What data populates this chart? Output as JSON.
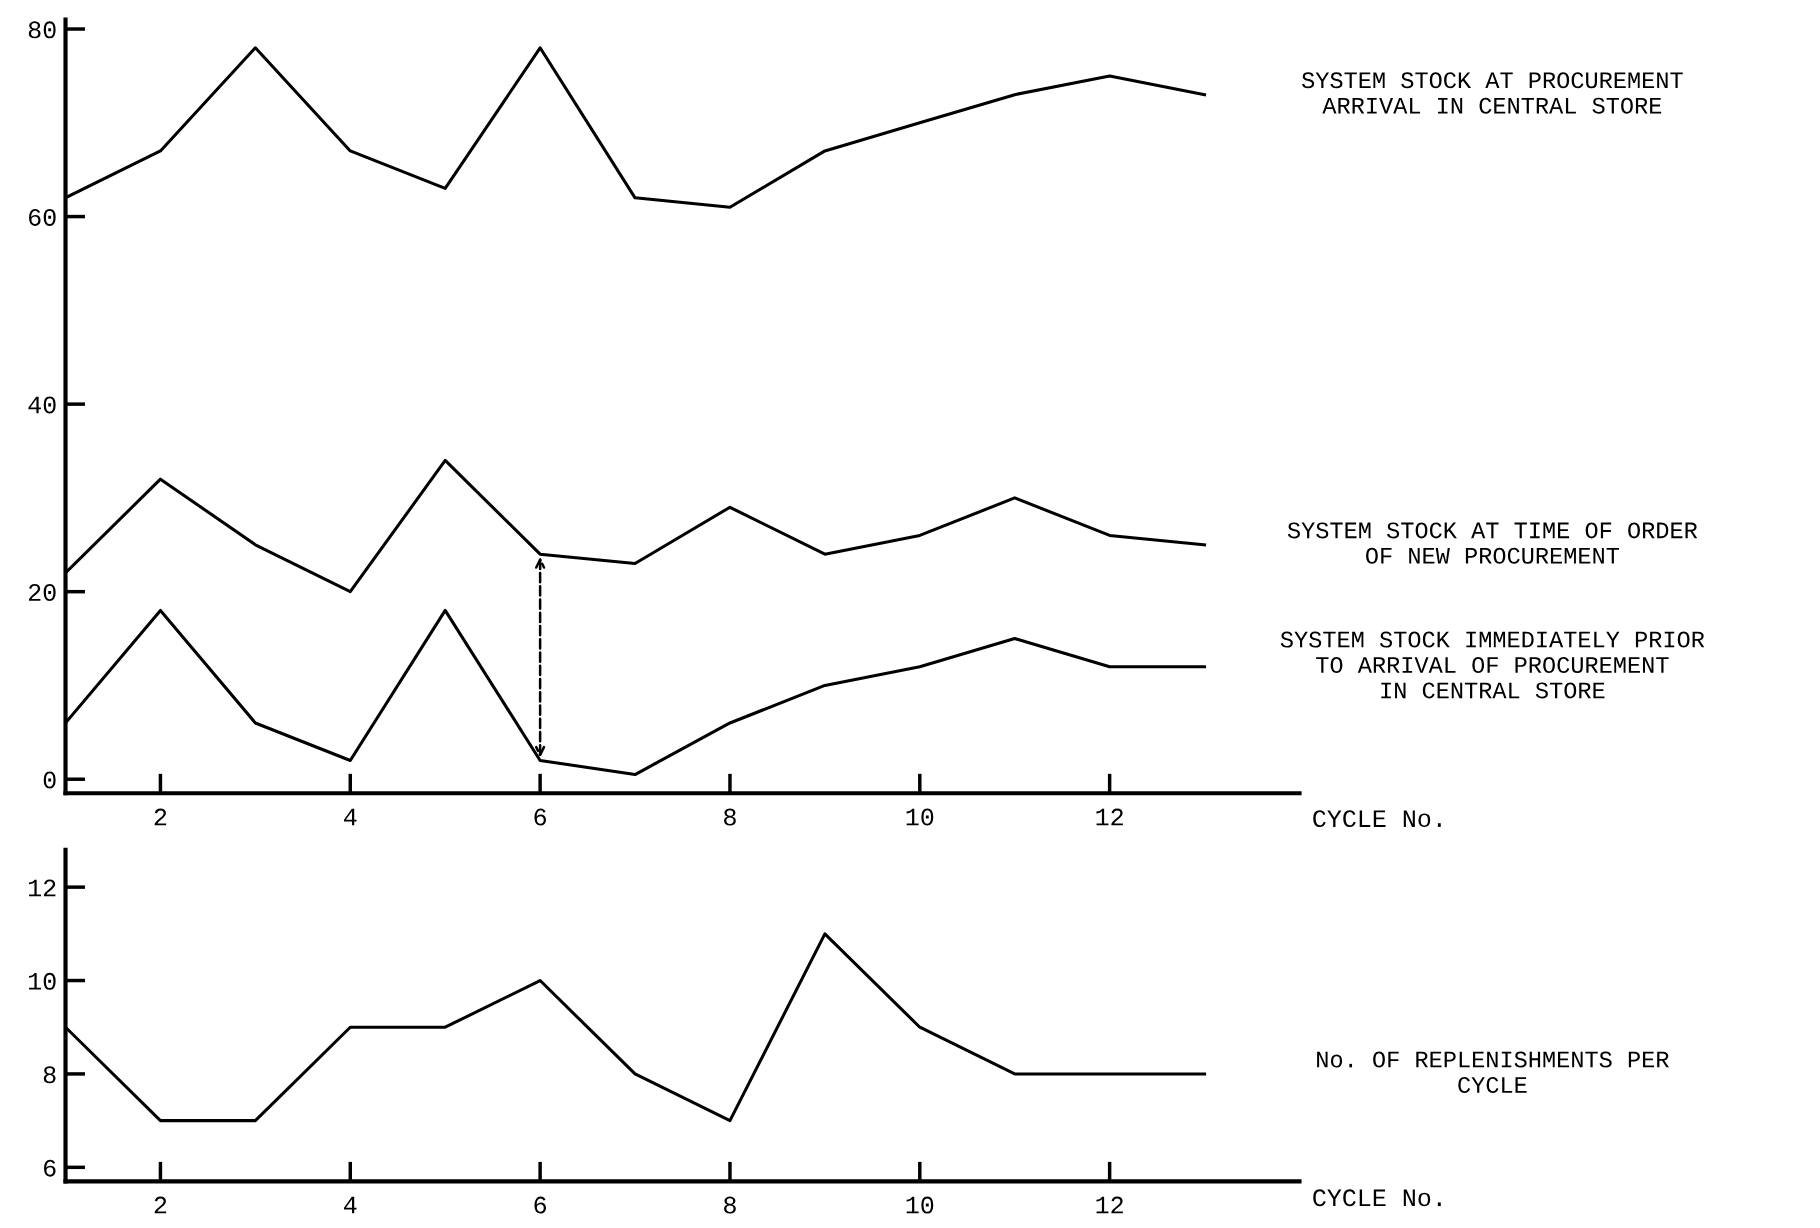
{
  "chart_data": [
    {
      "type": "line",
      "x": [
        1,
        2,
        3,
        4,
        5,
        6,
        7,
        8,
        9,
        10,
        11,
        12,
        13
      ],
      "xlabel": "CYCLE No.",
      "xlim": [
        1,
        14
      ],
      "xticks": [
        2,
        4,
        6,
        8,
        10,
        12
      ],
      "ylim": [
        -1.5,
        81
      ],
      "yticks": [
        0,
        20,
        40,
        60,
        80
      ],
      "grid": false,
      "legend": false,
      "marker": "none",
      "line_style": "solid",
      "series": [
        {
          "name": "SYSTEM STOCK AT PROCUREMENT\nARRIVAL IN CENTRAL STORE",
          "color": "#000000",
          "values": [
            62,
            67,
            78,
            67,
            63,
            78,
            62,
            61,
            67,
            70,
            73,
            75,
            73
          ]
        },
        {
          "name": "SYSTEM STOCK AT TIME OF ORDER\nOF NEW PROCUREMENT",
          "color": "#000000",
          "values": [
            22,
            32,
            25,
            20,
            34,
            24,
            23,
            29,
            24,
            26,
            30,
            26,
            25
          ]
        },
        {
          "name": "SYSTEM STOCK IMMEDIATELY PRIOR\nTO ARRIVAL OF PROCUREMENT\nIN CENTRAL STORE",
          "color": "#000000",
          "values": [
            6,
            18,
            6,
            2,
            18,
            2,
            0.5,
            6,
            10,
            12,
            15,
            12,
            12
          ]
        }
      ]
    },
    {
      "type": "line",
      "x": [
        1,
        2,
        3,
        4,
        5,
        6,
        7,
        8,
        9,
        10,
        11,
        12,
        13
      ],
      "xlabel": "CYCLE No.",
      "xlim": [
        1,
        14
      ],
      "xticks": [
        2,
        4,
        6,
        8,
        10,
        12
      ],
      "ylim": [
        5.7,
        12.8
      ],
      "yticks": [
        6,
        8,
        10,
        12
      ],
      "grid": false,
      "legend": false,
      "marker": "none",
      "line_style": "solid",
      "series": [
        {
          "name": "No. OF REPLENISHMENTS PER\nCYCLE",
          "color": "#000000",
          "values": [
            9,
            7,
            7,
            9,
            9,
            10,
            8,
            7,
            11,
            9,
            8,
            8,
            8
          ]
        }
      ]
    }
  ]
}
